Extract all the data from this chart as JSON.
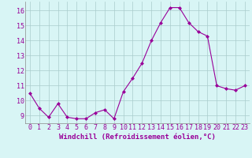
{
  "hours": [
    0,
    1,
    2,
    3,
    4,
    5,
    6,
    7,
    8,
    9,
    10,
    11,
    12,
    13,
    14,
    15,
    16,
    17,
    18,
    19,
    20,
    21,
    22,
    23
  ],
  "values": [
    10.5,
    9.5,
    8.9,
    9.8,
    8.9,
    8.8,
    8.8,
    9.2,
    9.4,
    8.8,
    10.6,
    11.5,
    12.5,
    14.0,
    15.2,
    16.2,
    16.2,
    15.2,
    14.6,
    14.3,
    11.0,
    10.8,
    10.7,
    11.0
  ],
  "line_color": "#990099",
  "marker": "D",
  "marker_size": 2,
  "bg_color": "#d8f5f5",
  "grid_color": "#aacccc",
  "xlabel": "Windchill (Refroidissement éolien,°C)",
  "xlabel_color": "#990099",
  "xlabel_fontsize": 6.5,
  "tick_color": "#990099",
  "tick_fontsize": 6,
  "ylim": [
    8.5,
    16.6
  ],
  "yticks": [
    9,
    10,
    11,
    12,
    13,
    14,
    15,
    16
  ],
  "title": ""
}
